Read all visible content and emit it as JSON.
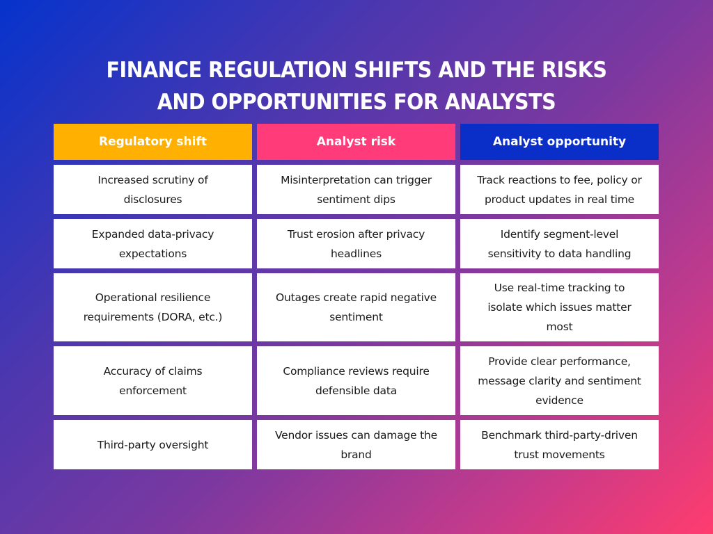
{
  "title": {
    "line1": "FINANCE REGULATION SHIFTS AND THE RISKS",
    "line2": "AND OPPORTUNITIES FOR ANALYSTS"
  },
  "table": {
    "headers": [
      {
        "label": "Regulatory shift",
        "color": "#ffb000"
      },
      {
        "label": "Analyst risk",
        "color": "#ff3b7a"
      },
      {
        "label": "Analyst opportunity",
        "color": "#0a2ec8"
      }
    ],
    "rows": [
      {
        "shift": "Increased scrutiny of disclosures",
        "risk": "Misinterpretation can trigger sentiment dips",
        "opportunity": "Track reactions to fee, policy or product updates in real time"
      },
      {
        "shift": "Expanded data-privacy expectations",
        "risk": "Trust erosion after privacy headlines",
        "opportunity": "Identify segment-level sensitivity to data handling"
      },
      {
        "shift": "Operational resilience requirements (DORA, etc.)",
        "risk": "Outages create rapid negative sentiment",
        "opportunity": "Use real-time tracking to isolate which issues matter most"
      },
      {
        "shift": "Accuracy of claims enforcement",
        "risk": "Compliance reviews require defensible data",
        "opportunity": "Provide clear performance, message clarity and sentiment evidence"
      },
      {
        "shift": "Third-party oversight",
        "risk": "Vendor issues can damage the brand",
        "opportunity": "Benchmark third-party-driven trust movements"
      }
    ]
  }
}
